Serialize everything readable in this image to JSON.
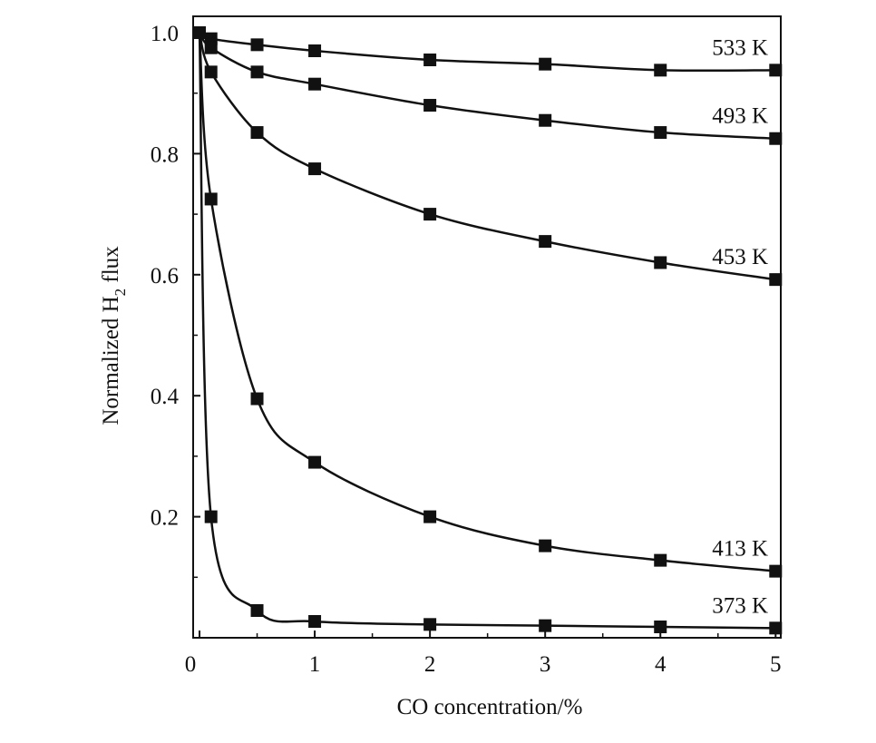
{
  "chart_data": {
    "type": "line",
    "title": "",
    "xlabel": "CO concentration/%",
    "ylabel_main": "Normalized H",
    "ylabel_sub": "2",
    "ylabel_tail": " flux",
    "xlim": [
      0,
      5.1
    ],
    "ylim": [
      0,
      1.0
    ],
    "xticks": [
      0,
      1,
      2,
      3,
      4,
      5
    ],
    "xtick_labels": [
      "0",
      "1",
      "2",
      "3",
      "4",
      "5"
    ],
    "yticks": [
      0.2,
      0.4,
      0.6,
      0.8,
      1.0
    ],
    "ytick_labels": [
      "0.2",
      "0.4",
      "0.6",
      "0.8",
      "1.0"
    ],
    "grid": false,
    "legend": "none",
    "marker": "square",
    "color": "#111111",
    "series": [
      {
        "name": "533 K",
        "x": [
          0,
          0.1,
          0.5,
          1,
          2,
          3,
          4,
          5
        ],
        "y": [
          1.0,
          0.99,
          0.98,
          0.97,
          0.955,
          0.948,
          0.938,
          0.938
        ]
      },
      {
        "name": "493 K",
        "x": [
          0,
          0.1,
          0.5,
          1,
          2,
          3,
          4,
          5
        ],
        "y": [
          1.0,
          0.975,
          0.935,
          0.915,
          0.88,
          0.855,
          0.835,
          0.825
        ]
      },
      {
        "name": "453 K",
        "x": [
          0,
          0.1,
          0.5,
          1,
          2,
          3,
          4,
          5
        ],
        "y": [
          1.0,
          0.935,
          0.835,
          0.775,
          0.7,
          0.655,
          0.62,
          0.592
        ]
      },
      {
        "name": "413 K",
        "x": [
          0,
          0.1,
          0.5,
          1,
          2,
          3,
          4,
          5
        ],
        "y": [
          1.0,
          0.725,
          0.395,
          0.29,
          0.2,
          0.152,
          0.128,
          0.11
        ]
      },
      {
        "name": "373 K",
        "x": [
          0,
          0.1,
          0.5,
          1,
          2,
          3,
          4,
          5
        ],
        "y": [
          1.0,
          0.2,
          0.045,
          0.027,
          0.022,
          0.02,
          0.018,
          0.016
        ]
      }
    ]
  }
}
